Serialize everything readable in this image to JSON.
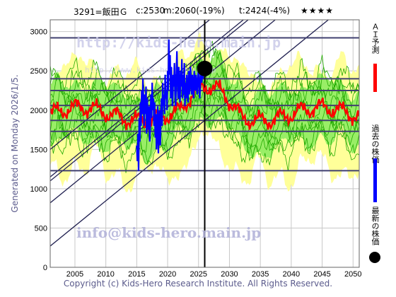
{
  "header": {
    "code": "3291=飯田Ｇ",
    "current": "c:2530",
    "model": "m:2060(-19%)",
    "target": "t:2424(-4%)",
    "stars": "★★★★"
  },
  "side_text": "Generated on Monday 2026/1/5.",
  "legend": {
    "ai_forecast": "ＡＩ予測",
    "past_price": "過去の株価",
    "latest_price": "最新の株価",
    "colors": {
      "ai": "#ff0000",
      "past": "#0000ff",
      "latest": "#000000"
    }
  },
  "watermarks": {
    "url_top": "http://kids-hero.main.jp",
    "url_small": "http://www.kids-hero.main.jp",
    "email_bottom": "info@kids-hero.main.jp"
  },
  "copyright": "Copyright (c) Kids-Hero Research Institute. All Rights Reserved.",
  "chart_data": {
    "type": "line",
    "xlim": [
      2001,
      2051
    ],
    "ylim": [
      0,
      3150
    ],
    "x_ticks": [
      2005,
      2010,
      2015,
      2020,
      2025,
      2030,
      2035,
      2040,
      2045,
      2050
    ],
    "y_ticks": [
      0,
      500,
      1000,
      1500,
      2000,
      2500,
      3000
    ],
    "grid": true,
    "horizontal_levels": [
      2920,
      2400,
      2250,
      2060,
      1870,
      1730,
      1230
    ],
    "current_marker": {
      "x": 2026.0,
      "y": 2530
    },
    "current_vline_x": 2026.0,
    "diagonal_lines": [
      {
        "x0": 2001,
        "y0": 1500,
        "x1": 2051,
        "y1": 4700
      },
      {
        "x0": 2001,
        "y0": 1150,
        "x1": 2051,
        "y1": 4350
      },
      {
        "x0": 2001,
        "y0": 1100,
        "x1": 2051,
        "y1": 4300
      },
      {
        "x0": 2001,
        "y0": 820,
        "x1": 2051,
        "y1": 4020
      },
      {
        "x0": 2001,
        "y0": 270,
        "x1": 2051,
        "y1": 3470
      }
    ],
    "colors": {
      "band_outer": "#ffff99",
      "band_inner": "#99ee66",
      "band_lines": "#22aa00",
      "ai_forecast": "#ff0000",
      "past_price": "#0000ff",
      "levels": "#404070",
      "diagonals": "#202050",
      "grid": "#c8c8c8"
    },
    "series": [
      {
        "name": "過去の株価",
        "x": [
          2015.0,
          2015.1,
          2015.2,
          2015.3,
          2015.4,
          2015.5,
          2015.6,
          2015.7,
          2015.8,
          2015.9,
          2016.0,
          2016.1,
          2016.2,
          2016.3,
          2016.4,
          2016.5,
          2016.6,
          2016.7,
          2016.8,
          2016.9,
          2017.0,
          2017.1,
          2017.2,
          2017.3,
          2017.4,
          2017.5,
          2017.6,
          2017.7,
          2017.8,
          2017.9,
          2018.0,
          2018.1,
          2018.2,
          2018.3,
          2018.4,
          2018.5,
          2018.6,
          2018.7,
          2018.8,
          2018.9,
          2019.0,
          2019.1,
          2019.2,
          2019.3,
          2019.4,
          2019.5,
          2019.6,
          2019.7,
          2019.8,
          2019.9,
          2020.0,
          2020.1,
          2020.2,
          2020.3,
          2020.4,
          2020.5,
          2020.6,
          2020.7,
          2020.8,
          2020.9,
          2021.0,
          2021.1,
          2021.2,
          2021.3,
          2021.4,
          2021.5,
          2021.6,
          2021.7,
          2021.8,
          2021.9,
          2022.0,
          2022.1,
          2022.2,
          2022.3,
          2022.4,
          2022.5,
          2022.6,
          2022.7,
          2022.8,
          2022.9,
          2023.0,
          2023.1,
          2023.2,
          2023.3,
          2023.4,
          2023.5,
          2023.6,
          2023.7,
          2023.8,
          2023.9,
          2024.0,
          2024.1,
          2024.2,
          2024.3,
          2024.4,
          2024.5,
          2024.6,
          2024.7,
          2024.8,
          2024.9,
          2025.0,
          2025.1,
          2025.2,
          2025.3,
          2025.4,
          2025.5,
          2025.6,
          2025.7,
          2025.8,
          2025.9
        ],
        "y": [
          1550,
          1350,
          1700,
          1230,
          1900,
          1600,
          2100,
          1800,
          2250,
          1950,
          2400,
          2100,
          1800,
          2200,
          1950,
          2300,
          1700,
          2150,
          1900,
          1750,
          2050,
          1600,
          1850,
          2200,
          1900,
          2350,
          2000,
          2150,
          1800,
          2100,
          1650,
          1950,
          1500,
          1800,
          2050,
          1450,
          1750,
          2000,
          1550,
          1900,
          2150,
          1800,
          2350,
          2050,
          2200,
          1950,
          2450,
          2150,
          2250,
          2000,
          2500,
          2250,
          2900,
          2450,
          2700,
          2150,
          2550,
          2250,
          2050,
          2450,
          2300,
          2600,
          2200,
          2050,
          2450,
          2750,
          2350,
          2150,
          2550,
          2250,
          2100,
          2500,
          2300,
          2650,
          2150,
          2450,
          2200,
          2600,
          2050,
          2350,
          2150,
          2450,
          2250,
          2100,
          2500,
          2200,
          2350,
          2550,
          2300,
          2200,
          2450,
          2300,
          2150,
          2500,
          2350,
          2250,
          2450,
          2350,
          2200,
          2400,
          2550,
          2300,
          2150,
          2400,
          2500,
          2350,
          2450,
          2400,
          2500,
          2530
        ]
      }
    ]
  }
}
